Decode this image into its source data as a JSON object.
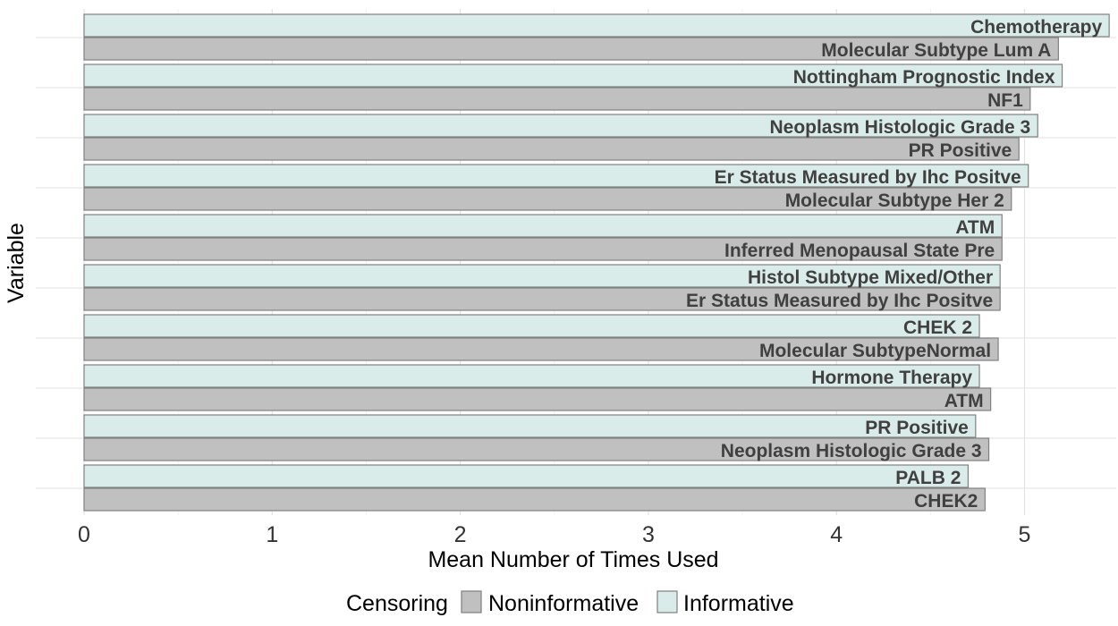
{
  "chart_data": {
    "type": "bar",
    "orientation": "horizontal",
    "xlabel": "Mean Number of Times Used",
    "ylabel": "Variable",
    "xlim": [
      0,
      5.45
    ],
    "x_ticks": [
      "0",
      "1",
      "2",
      "3",
      "4",
      "5"
    ],
    "grid": true,
    "legend": {
      "title": "Censoring",
      "position": "bottom",
      "entries": [
        {
          "name": "Noninformative",
          "color": "#c0c0c0"
        },
        {
          "name": "Informative",
          "color": "#d9ecea"
        }
      ]
    },
    "groups": [
      {
        "informative": {
          "label": "Chemotherapy",
          "value": 5.45
        },
        "noninformative": {
          "label": "Molecular Subtype Lum A",
          "value": 5.18
        }
      },
      {
        "informative": {
          "label": "Nottingham Prognostic Index",
          "value": 5.2
        },
        "noninformative": {
          "label": "NF1",
          "value": 5.03
        }
      },
      {
        "informative": {
          "label": "Neoplasm Histologic Grade 3",
          "value": 5.07
        },
        "noninformative": {
          "label": "PR Positive",
          "value": 4.97
        }
      },
      {
        "informative": {
          "label": "Er Status Measured by Ihc Positve",
          "value": 5.02
        },
        "noninformative": {
          "label": "Molecular Subtype Her 2",
          "value": 4.93
        }
      },
      {
        "informative": {
          "label": "ATM",
          "value": 4.88
        },
        "noninformative": {
          "label": "Inferred Menopausal State Pre",
          "value": 4.88
        }
      },
      {
        "informative": {
          "label": "Histol Subtype Mixed/Other",
          "value": 4.87
        },
        "noninformative": {
          "label": "Er Status Measured by Ihc Positve",
          "value": 4.87
        }
      },
      {
        "informative": {
          "label": "CHEK 2",
          "value": 4.76
        },
        "noninformative": {
          "label": "Molecular SubtypeNormal",
          "value": 4.86
        }
      },
      {
        "informative": {
          "label": "Hormone Therapy",
          "value": 4.76
        },
        "noninformative": {
          "label": "ATM",
          "value": 4.82
        }
      },
      {
        "informative": {
          "label": "PR Positive",
          "value": 4.74
        },
        "noninformative": {
          "label": "Neoplasm Histologic Grade 3",
          "value": 4.81
        }
      },
      {
        "informative": {
          "label": "PALB 2",
          "value": 4.7
        },
        "noninformative": {
          "label": "CHEK2",
          "value": 4.79
        }
      }
    ]
  }
}
